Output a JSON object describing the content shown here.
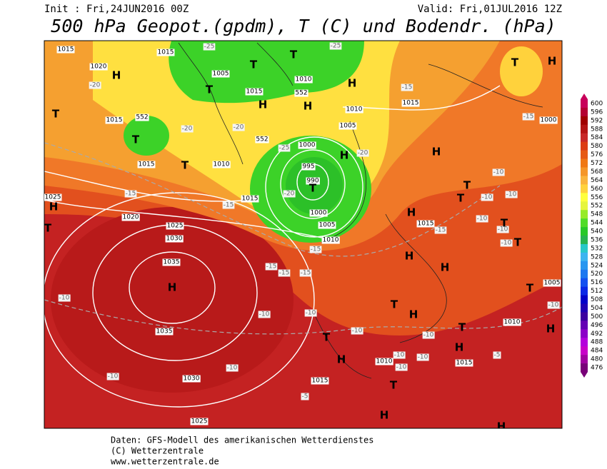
{
  "header": {
    "init": "Init : Fri,24JUN2016 00Z",
    "valid": "Valid: Fri,01JUL2016 12Z",
    "title": "500 hPa Geopot.(gpdm), T (C) und Bodendr. (hPa)"
  },
  "footer": {
    "line1": "Daten: GFS-Modell des amerikanischen Wetterdienstes",
    "line2": "(C) Wetterzentrale",
    "line3": "www.wetterzentrale.de"
  },
  "colorbar": {
    "labels": [
      600,
      596,
      592,
      588,
      584,
      580,
      576,
      572,
      568,
      564,
      560,
      556,
      552,
      548,
      544,
      540,
      536,
      532,
      528,
      524,
      520,
      516,
      512,
      508,
      504,
      500,
      496,
      492,
      488,
      484,
      480,
      476
    ],
    "colors": [
      "#c8005a",
      "#b40032",
      "#a00000",
      "#b41414",
      "#c82828",
      "#dc3c14",
      "#e65a14",
      "#f07814",
      "#f59628",
      "#fab43c",
      "#ffd23c",
      "#ffff3c",
      "#e6f53c",
      "#96eb28",
      "#50dc28",
      "#28c828",
      "#28b450",
      "#28c8c8",
      "#3cb4f0",
      "#2896f0",
      "#1e78f0",
      "#1450f0",
      "#0a28e6",
      "#0000c8",
      "#1e00b4",
      "#3c00a0",
      "#6400b4",
      "#8c00c8",
      "#b400dc",
      "#c800c8",
      "#a000a0",
      "#780078"
    ]
  },
  "map": {
    "isobar_labels": [
      "1015",
      "1015",
      "1020",
      "1005",
      "1010",
      "1015",
      "552",
      "1015",
      "1010",
      "1015",
      "552",
      "1005",
      "1000",
      "552",
      "1000",
      "1015",
      "1010",
      "995",
      "990",
      "1025",
      "1015",
      "1020",
      "1000",
      "1005",
      "1025",
      "1030",
      "1010",
      "1015",
      "1035",
      "1005",
      "1010",
      "1035",
      "1010",
      "1015",
      "1015",
      "1030",
      "1025"
    ],
    "temperature_labels": [
      "-25",
      "-25",
      "-20",
      "-15",
      "-20",
      "-20",
      "-25",
      "-20",
      "-15",
      "-20",
      "-15",
      "-15",
      "-10",
      "-10",
      "-10",
      "-10",
      "-10",
      "-10",
      "-15",
      "-15",
      "-15",
      "-15",
      "-15",
      "-10",
      "-10",
      "-10",
      "-10",
      "-10",
      "-10",
      "-10",
      "-10",
      "-5",
      "-10",
      "-10",
      "-5",
      "-10"
    ],
    "pressure_centers": [
      "H",
      "T",
      "T",
      "H",
      "H",
      "T",
      "T",
      "T",
      "H",
      "T",
      "T",
      "H",
      "H",
      "H",
      "T",
      "T",
      "T",
      "H",
      "T",
      "H",
      "T",
      "H",
      "H",
      "T",
      "T",
      "H",
      "H",
      "T",
      "H",
      "T",
      "H",
      "T",
      "H",
      "H",
      "T",
      "H"
    ]
  }
}
